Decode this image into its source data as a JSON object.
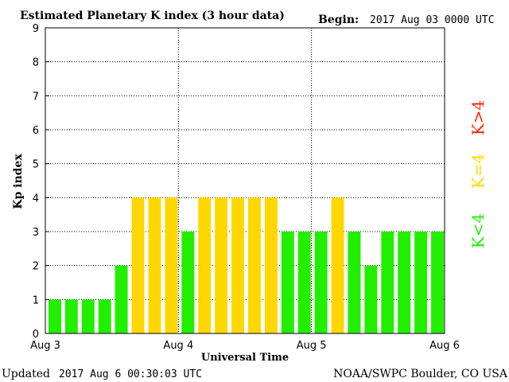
{
  "header": {
    "title": "Estimated Planetary K index (3 hour data)",
    "begin_label": "Begin:",
    "begin_value": "2017 Aug 03 0000 UTC"
  },
  "footer": {
    "updated_label": "Updated",
    "updated_value": "2017 Aug  6 00:30:03 UTC",
    "source": "NOAA/SWPC Boulder, CO USA"
  },
  "legend": {
    "high": "K>4",
    "equal": "K=4",
    "low": "K<4"
  },
  "colors": {
    "low": "#22ee00",
    "equal": "#ffd700",
    "high": "#ff2200",
    "grid": "#000000"
  },
  "chart_data": {
    "type": "bar",
    "title": "Estimated Planetary K index (3 hour data)",
    "xlabel": "Universal Time",
    "ylabel": "Kp index",
    "ylim": [
      0,
      9
    ],
    "yticks": [
      "0",
      "1",
      "2",
      "3",
      "4",
      "5",
      "6",
      "7",
      "8",
      "9"
    ],
    "xticks": [
      "Aug 3",
      "Aug 4",
      "Aug 5",
      "Aug 6"
    ],
    "interval_hours": 3,
    "values": [
      1,
      1,
      1,
      1,
      2,
      4,
      4,
      4,
      3,
      4,
      4,
      4,
      4,
      4,
      3,
      3,
      3,
      4,
      3,
      2,
      3,
      3,
      3,
      3
    ],
    "grid": "dotted"
  }
}
